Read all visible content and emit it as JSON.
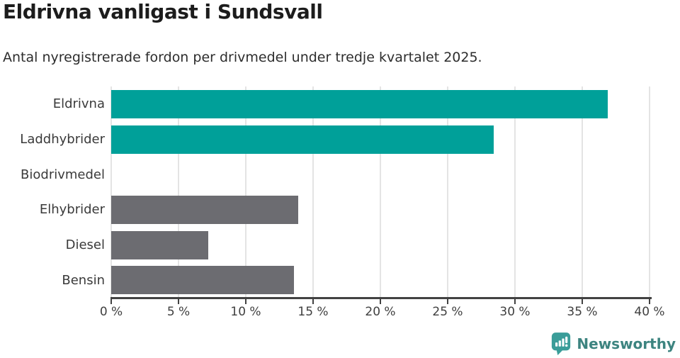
{
  "header": {
    "title": "Eldrivna vanligast i Sundsvall",
    "subtitle": "Antal nyregistrerade fordon per drivmedel under tredje kvartalet 2025."
  },
  "chart_data": {
    "type": "bar",
    "orientation": "horizontal",
    "title": "Eldrivna vanligast i Sundsvall",
    "subtitle": "Antal nyregistrerade fordon per drivmedel under tredje kvartalet 2025.",
    "categories": [
      "Eldrivna",
      "Laddhybrider",
      "Biodrivmedel",
      "Elhybrider",
      "Diesel",
      "Bensin"
    ],
    "values": [
      36.9,
      28.4,
      0,
      13.9,
      7.2,
      13.6
    ],
    "unit": "%",
    "bar_colors": [
      "#00a099",
      "#00a099",
      "#6c6c71",
      "#6c6c71",
      "#6c6c71",
      "#6c6c71"
    ],
    "xlim": [
      0,
      40
    ],
    "x_ticks": [
      0,
      5,
      10,
      15,
      20,
      25,
      30,
      35,
      40
    ],
    "x_tick_labels": [
      "0 %",
      "5 %",
      "10 %",
      "15 %",
      "20 %",
      "25 %",
      "30 %",
      "35 %",
      "40 %"
    ],
    "grid": "vertical-gridlines",
    "legend": "none"
  },
  "footer": {
    "brand": "Newsworthy",
    "logo_icon": "bar-chart-speech-bubble-icon",
    "brand_color": "#3d8480",
    "logo_color": "#3a9d99"
  },
  "colors": {
    "accent_teal": "#00a099",
    "neutral_gray": "#6c6c71",
    "gridline": "#e4e4e4",
    "axis": "#424242",
    "title_text": "#1c1c1c",
    "body_text": "#2d2d2d",
    "background": "#ffffff"
  }
}
